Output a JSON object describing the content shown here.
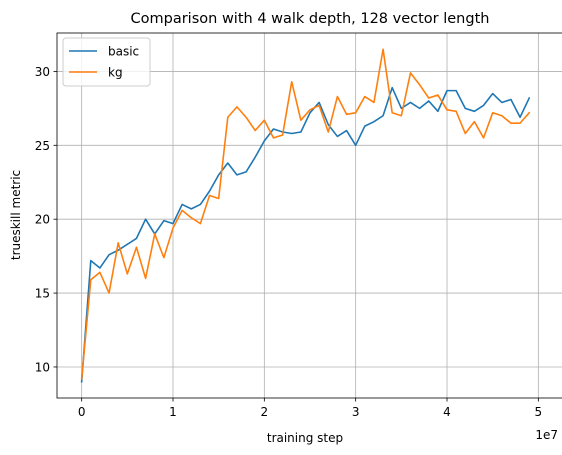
{
  "chart_data": {
    "type": "line",
    "title": "Comparison with 4 walk depth, 128 vector length",
    "xlabel": "training step",
    "ylabel": "trueskill metric",
    "x_offset_label": "1e7",
    "xlim": [
      -0.27,
      5.27
    ],
    "ylim": [
      7.9,
      32.6
    ],
    "x_ticks": [
      0,
      1,
      2,
      3,
      4,
      5
    ],
    "x_tick_labels": [
      "0",
      "1",
      "2",
      "3",
      "4",
      "5"
    ],
    "y_ticks": [
      10,
      15,
      20,
      25,
      30
    ],
    "y_tick_labels": [
      "10",
      "15",
      "20",
      "25",
      "30"
    ],
    "grid": true,
    "legend_position": "top-left",
    "x": [
      0,
      0.1,
      0.2,
      0.3,
      0.4,
      0.5,
      0.6,
      0.7,
      0.8,
      0.9,
      1.0,
      1.1,
      1.2,
      1.3,
      1.4,
      1.5,
      1.6,
      1.7,
      1.8,
      1.9,
      2.0,
      2.1,
      2.2,
      2.3,
      2.4,
      2.5,
      2.6,
      2.7,
      2.8,
      2.9,
      3.0,
      3.1,
      3.2,
      3.3,
      3.4,
      3.5,
      3.6,
      3.7,
      3.8,
      3.9,
      4.0,
      4.1,
      4.2,
      4.3,
      4.4,
      4.5,
      4.6,
      4.7,
      4.8,
      4.9
    ],
    "series": [
      {
        "name": "basic",
        "color": "#1f77b4",
        "values": [
          9.0,
          17.2,
          16.7,
          17.6,
          17.9,
          18.3,
          18.7,
          20.0,
          19.0,
          19.9,
          19.7,
          21.0,
          20.7,
          21.0,
          21.9,
          23.0,
          23.8,
          23.0,
          23.2,
          24.2,
          25.3,
          26.1,
          25.9,
          25.8,
          25.9,
          27.2,
          27.9,
          26.4,
          25.6,
          26.0,
          25.0,
          26.3,
          26.6,
          27.0,
          28.9,
          27.5,
          27.9,
          27.5,
          28.0,
          27.3,
          28.7,
          28.7,
          27.5,
          27.3,
          27.7,
          28.5,
          27.9,
          28.1,
          26.9,
          28.2
        ]
      },
      {
        "name": "kg",
        "color": "#ff7f0e",
        "values": [
          9.2,
          15.9,
          16.4,
          15.0,
          18.4,
          16.3,
          18.1,
          16.0,
          19.0,
          17.4,
          19.4,
          20.6,
          20.1,
          19.7,
          21.6,
          21.4,
          26.9,
          27.6,
          26.9,
          26.0,
          26.7,
          25.5,
          25.7,
          29.3,
          26.7,
          27.4,
          27.7,
          25.9,
          28.3,
          27.1,
          27.2,
          28.3,
          27.9,
          31.5,
          27.2,
          27.0,
          29.9,
          29.1,
          28.2,
          28.4,
          27.4,
          27.3,
          25.8,
          26.6,
          25.5,
          27.2,
          27.0,
          26.5,
          26.5,
          27.2
        ]
      }
    ]
  }
}
